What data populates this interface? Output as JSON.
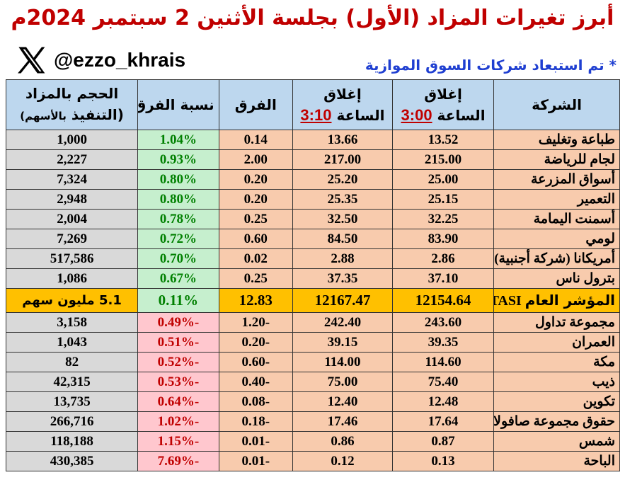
{
  "title": "أبرز تغيرات المزاد (الأول) بجلسة الأثنين 2 سبتمبر 2024م",
  "handle": "@ezzo_khrais",
  "note": "* تم استبعاد شركات السوق الموازية",
  "headers": {
    "company": "الشركة",
    "close_300_line1": "إغلاق",
    "close_300_line2": "الساعة",
    "close_300_time": "3:00",
    "close_310_line1": "إغلاق",
    "close_310_line2": "الساعة",
    "close_310_time": "3:10",
    "diff": "الفرق",
    "pct": "نسبة الفرق",
    "volume_line1": "الحجم بالمزاد",
    "volume_line2": "(التنفيذ",
    "volume_line2b": "بالأسهم)"
  },
  "gainers": [
    {
      "name": "طباعة وتغليف",
      "c300": "13.52",
      "c310": "13.66",
      "diff": "0.14",
      "pct": "1.04%",
      "vol": "1,000"
    },
    {
      "name": "لجام للرياضة",
      "c300": "215.00",
      "c310": "217.00",
      "diff": "2.00",
      "pct": "0.93%",
      "vol": "2,227"
    },
    {
      "name": "أسواق المزرعة",
      "c300": "25.00",
      "c310": "25.20",
      "diff": "0.20",
      "pct": "0.80%",
      "vol": "7,324"
    },
    {
      "name": "التعمير",
      "c300": "25.15",
      "c310": "25.35",
      "diff": "0.20",
      "pct": "0.80%",
      "vol": "2,948"
    },
    {
      "name": "أسمنت اليمامة",
      "c300": "32.25",
      "c310": "32.50",
      "diff": "0.25",
      "pct": "0.78%",
      "vol": "2,004"
    },
    {
      "name": "لومي",
      "c300": "83.90",
      "c310": "84.50",
      "diff": "0.60",
      "pct": "0.72%",
      "vol": "7,269"
    },
    {
      "name": "أمريكانا (شركة أجنبية)",
      "c300": "2.86",
      "c310": "2.88",
      "diff": "0.02",
      "pct": "0.70%",
      "vol": "517,586"
    },
    {
      "name": "بترول ناس",
      "c300": "37.10",
      "c310": "37.35",
      "diff": "0.25",
      "pct": "0.67%",
      "vol": "1,086"
    }
  ],
  "index_row": {
    "name_ar": "المؤشر العام",
    "name_en": "TASI",
    "c300": "12154.64",
    "c310": "12167.47",
    "diff": "12.83",
    "pct": "0.11%",
    "vol": "5.1 مليون سهم"
  },
  "losers": [
    {
      "name": "مجموعة تداول",
      "c300": "243.60",
      "c310": "242.40",
      "diff": "-1.20",
      "pct": "-0.49%",
      "vol": "3,158"
    },
    {
      "name": "العمران",
      "c300": "39.35",
      "c310": "39.15",
      "diff": "-0.20",
      "pct": "-0.51%",
      "vol": "1,043"
    },
    {
      "name": "مكة",
      "c300": "114.60",
      "c310": "114.00",
      "diff": "-0.60",
      "pct": "-0.52%",
      "vol": "82"
    },
    {
      "name": "ذيب",
      "c300": "75.40",
      "c310": "75.00",
      "diff": "-0.40",
      "pct": "-0.53%",
      "vol": "42,315"
    },
    {
      "name": "تكوين",
      "c300": "12.48",
      "c310": "12.40",
      "diff": "-0.08",
      "pct": "-0.64%",
      "vol": "13,735"
    },
    {
      "name": "حقوق مجموعة صافولا",
      "c300": "17.64",
      "c310": "17.46",
      "diff": "-0.18",
      "pct": "-1.02%",
      "vol": "266,716"
    },
    {
      "name": "شمس",
      "c300": "0.87",
      "c310": "0.86",
      "diff": "-0.01",
      "pct": "-1.15%",
      "vol": "118,188"
    },
    {
      "name": "الباحة",
      "c300": "0.13",
      "c310": "0.12",
      "diff": "-0.01",
      "pct": "-7.69%",
      "vol": "430,385"
    }
  ]
}
